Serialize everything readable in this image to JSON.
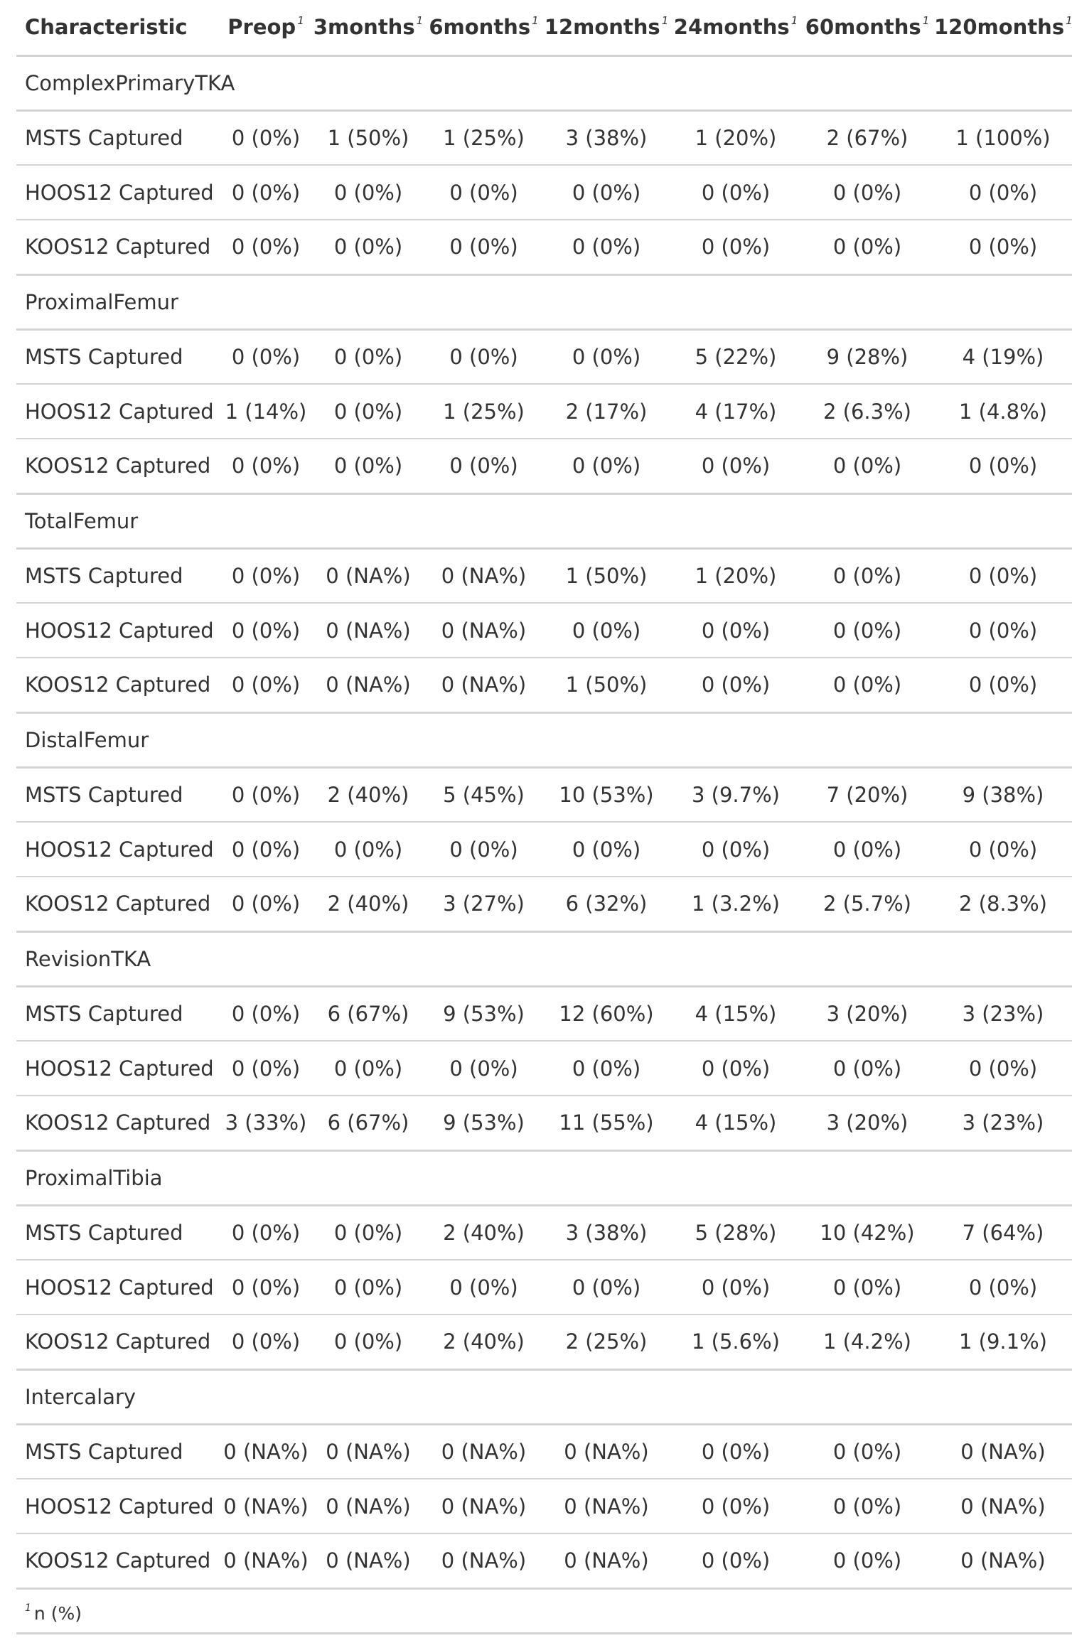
{
  "header": {
    "columns": [
      "Characteristic",
      "Preop",
      "3months",
      "6months",
      "12months",
      "24months",
      "60months",
      "120months"
    ],
    "footnote_mark": "1"
  },
  "groups": [
    {
      "label": "ComplexPrimaryTKA",
      "rows": [
        {
          "label": "MSTS Captured",
          "values": [
            "0 (0%)",
            "1 (50%)",
            "1 (25%)",
            "3 (38%)",
            "1 (20%)",
            "2 (67%)",
            "1 (100%)"
          ]
        },
        {
          "label": "HOOS12 Captured",
          "values": [
            "0 (0%)",
            "0 (0%)",
            "0 (0%)",
            "0 (0%)",
            "0 (0%)",
            "0 (0%)",
            "0 (0%)"
          ]
        },
        {
          "label": "KOOS12 Captured",
          "values": [
            "0 (0%)",
            "0 (0%)",
            "0 (0%)",
            "0 (0%)",
            "0 (0%)",
            "0 (0%)",
            "0 (0%)"
          ]
        }
      ]
    },
    {
      "label": "ProximalFemur",
      "rows": [
        {
          "label": "MSTS Captured",
          "values": [
            "0 (0%)",
            "0 (0%)",
            "0 (0%)",
            "0 (0%)",
            "5 (22%)",
            "9 (28%)",
            "4 (19%)"
          ]
        },
        {
          "label": "HOOS12 Captured",
          "values": [
            "1 (14%)",
            "0 (0%)",
            "1 (25%)",
            "2 (17%)",
            "4 (17%)",
            "2 (6.3%)",
            "1 (4.8%)"
          ]
        },
        {
          "label": "KOOS12 Captured",
          "values": [
            "0 (0%)",
            "0 (0%)",
            "0 (0%)",
            "0 (0%)",
            "0 (0%)",
            "0 (0%)",
            "0 (0%)"
          ]
        }
      ]
    },
    {
      "label": "TotalFemur",
      "rows": [
        {
          "label": "MSTS Captured",
          "values": [
            "0 (0%)",
            "0 (NA%)",
            "0 (NA%)",
            "1 (50%)",
            "1 (20%)",
            "0 (0%)",
            "0 (0%)"
          ]
        },
        {
          "label": "HOOS12 Captured",
          "values": [
            "0 (0%)",
            "0 (NA%)",
            "0 (NA%)",
            "0 (0%)",
            "0 (0%)",
            "0 (0%)",
            "0 (0%)"
          ]
        },
        {
          "label": "KOOS12 Captured",
          "values": [
            "0 (0%)",
            "0 (NA%)",
            "0 (NA%)",
            "1 (50%)",
            "0 (0%)",
            "0 (0%)",
            "0 (0%)"
          ]
        }
      ]
    },
    {
      "label": "DistalFemur",
      "rows": [
        {
          "label": "MSTS Captured",
          "values": [
            "0 (0%)",
            "2 (40%)",
            "5 (45%)",
            "10 (53%)",
            "3 (9.7%)",
            "7 (20%)",
            "9 (38%)"
          ]
        },
        {
          "label": "HOOS12 Captured",
          "values": [
            "0 (0%)",
            "0 (0%)",
            "0 (0%)",
            "0 (0%)",
            "0 (0%)",
            "0 (0%)",
            "0 (0%)"
          ]
        },
        {
          "label": "KOOS12 Captured",
          "values": [
            "0 (0%)",
            "2 (40%)",
            "3 (27%)",
            "6 (32%)",
            "1 (3.2%)",
            "2 (5.7%)",
            "2 (8.3%)"
          ]
        }
      ]
    },
    {
      "label": "RevisionTKA",
      "rows": [
        {
          "label": "MSTS Captured",
          "values": [
            "0 (0%)",
            "6 (67%)",
            "9 (53%)",
            "12 (60%)",
            "4 (15%)",
            "3 (20%)",
            "3 (23%)"
          ]
        },
        {
          "label": "HOOS12 Captured",
          "values": [
            "0 (0%)",
            "0 (0%)",
            "0 (0%)",
            "0 (0%)",
            "0 (0%)",
            "0 (0%)",
            "0 (0%)"
          ]
        },
        {
          "label": "KOOS12 Captured",
          "values": [
            "3 (33%)",
            "6 (67%)",
            "9 (53%)",
            "11 (55%)",
            "4 (15%)",
            "3 (20%)",
            "3 (23%)"
          ]
        }
      ]
    },
    {
      "label": "ProximalTibia",
      "rows": [
        {
          "label": "MSTS Captured",
          "values": [
            "0 (0%)",
            "0 (0%)",
            "2 (40%)",
            "3 (38%)",
            "5 (28%)",
            "10 (42%)",
            "7 (64%)"
          ]
        },
        {
          "label": "HOOS12 Captured",
          "values": [
            "0 (0%)",
            "0 (0%)",
            "0 (0%)",
            "0 (0%)",
            "0 (0%)",
            "0 (0%)",
            "0 (0%)"
          ]
        },
        {
          "label": "KOOS12 Captured",
          "values": [
            "0 (0%)",
            "0 (0%)",
            "2 (40%)",
            "2 (25%)",
            "1 (5.6%)",
            "1 (4.2%)",
            "1 (9.1%)"
          ]
        }
      ]
    },
    {
      "label": "Intercalary",
      "rows": [
        {
          "label": "MSTS Captured",
          "values": [
            "0 (NA%)",
            "0 (NA%)",
            "0 (NA%)",
            "0 (NA%)",
            "0 (0%)",
            "0 (0%)",
            "0 (NA%)"
          ]
        },
        {
          "label": "HOOS12 Captured",
          "values": [
            "0 (NA%)",
            "0 (NA%)",
            "0 (NA%)",
            "0 (NA%)",
            "0 (0%)",
            "0 (0%)",
            "0 (NA%)"
          ]
        },
        {
          "label": "KOOS12 Captured",
          "values": [
            "0 (NA%)",
            "0 (NA%)",
            "0 (NA%)",
            "0 (NA%)",
            "0 (0%)",
            "0 (0%)",
            "0 (NA%)"
          ]
        }
      ]
    }
  ],
  "footnote": {
    "mark": "1",
    "text": "n (%)"
  }
}
